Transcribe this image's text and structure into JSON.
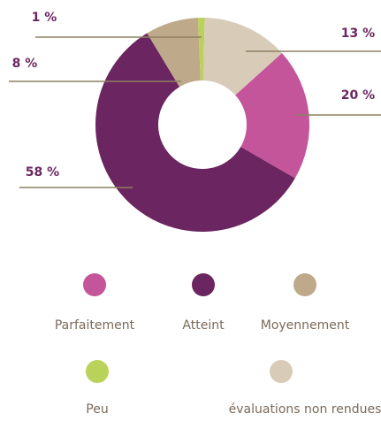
{
  "chart_data": {
    "type": "donut",
    "categories": [
      "Parfaitement",
      "Atteint",
      "Moyennement",
      "Peu",
      "évaluations non rendues"
    ],
    "values": [
      20,
      58,
      8,
      1,
      13
    ],
    "value_labels": [
      "20 %",
      "58 %",
      "8 %",
      "1 %",
      "13 %"
    ],
    "colors": [
      "#c4559b",
      "#6b2560",
      "#bea98a",
      "#b9d35a",
      "#d8cbb8"
    ]
  }
}
